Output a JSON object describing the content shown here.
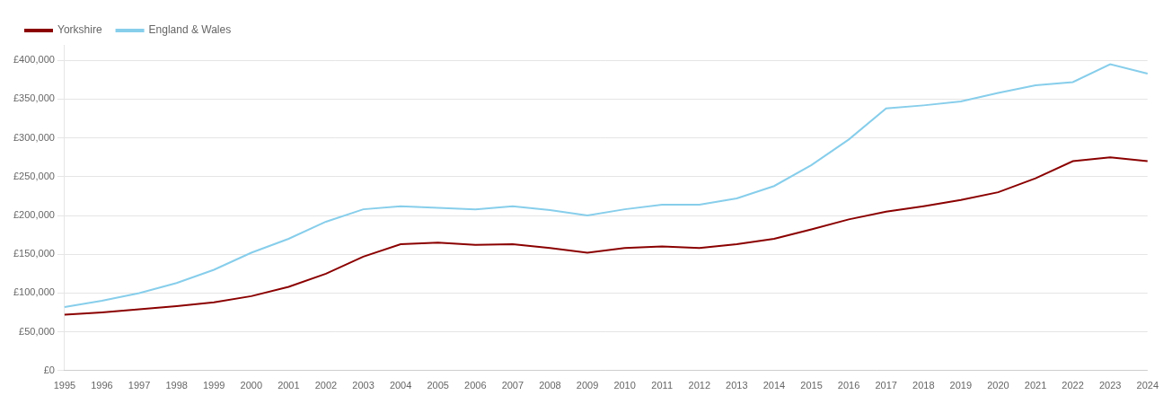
{
  "chart_data": {
    "type": "line",
    "categories": [
      "1995",
      "1996",
      "1997",
      "1998",
      "1999",
      "2000",
      "2001",
      "2002",
      "2003",
      "2004",
      "2005",
      "2006",
      "2007",
      "2008",
      "2009",
      "2010",
      "2011",
      "2012",
      "2013",
      "2014",
      "2015",
      "2016",
      "2017",
      "2018",
      "2019",
      "2020",
      "2021",
      "2022",
      "2023",
      "2024"
    ],
    "series": [
      {
        "name": "Yorkshire",
        "color": "#8b0000",
        "values": [
          72000,
          75000,
          79000,
          83000,
          88000,
          96000,
          108000,
          125000,
          147000,
          163000,
          165000,
          162000,
          163000,
          158000,
          152000,
          158000,
          160000,
          158000,
          163000,
          170000,
          182000,
          195000,
          205000,
          212000,
          220000,
          230000,
          248000,
          270000,
          275000,
          270000
        ]
      },
      {
        "name": "England & Wales",
        "color": "#87CEEB",
        "values": [
          82000,
          90000,
          100000,
          113000,
          130000,
          152000,
          170000,
          192000,
          208000,
          212000,
          210000,
          208000,
          212000,
          207000,
          200000,
          208000,
          214000,
          214000,
          222000,
          238000,
          265000,
          298000,
          338000,
          342000,
          347000,
          358000,
          368000,
          372000,
          395000,
          383000
        ]
      }
    ],
    "ylim": [
      0,
      420000
    ],
    "yticks": [
      {
        "value": 0,
        "label": "£0"
      },
      {
        "value": 50000,
        "label": "£50,000"
      },
      {
        "value": 100000,
        "label": "£100,000"
      },
      {
        "value": 150000,
        "label": "£150,000"
      },
      {
        "value": 200000,
        "label": "£200,000"
      },
      {
        "value": 250000,
        "label": "£250,000"
      },
      {
        "value": 300000,
        "label": "£300,000"
      },
      {
        "value": 350000,
        "label": "£350,000"
      },
      {
        "value": 400000,
        "label": "£400,000"
      }
    ],
    "grid": true,
    "legend": "upper left"
  }
}
